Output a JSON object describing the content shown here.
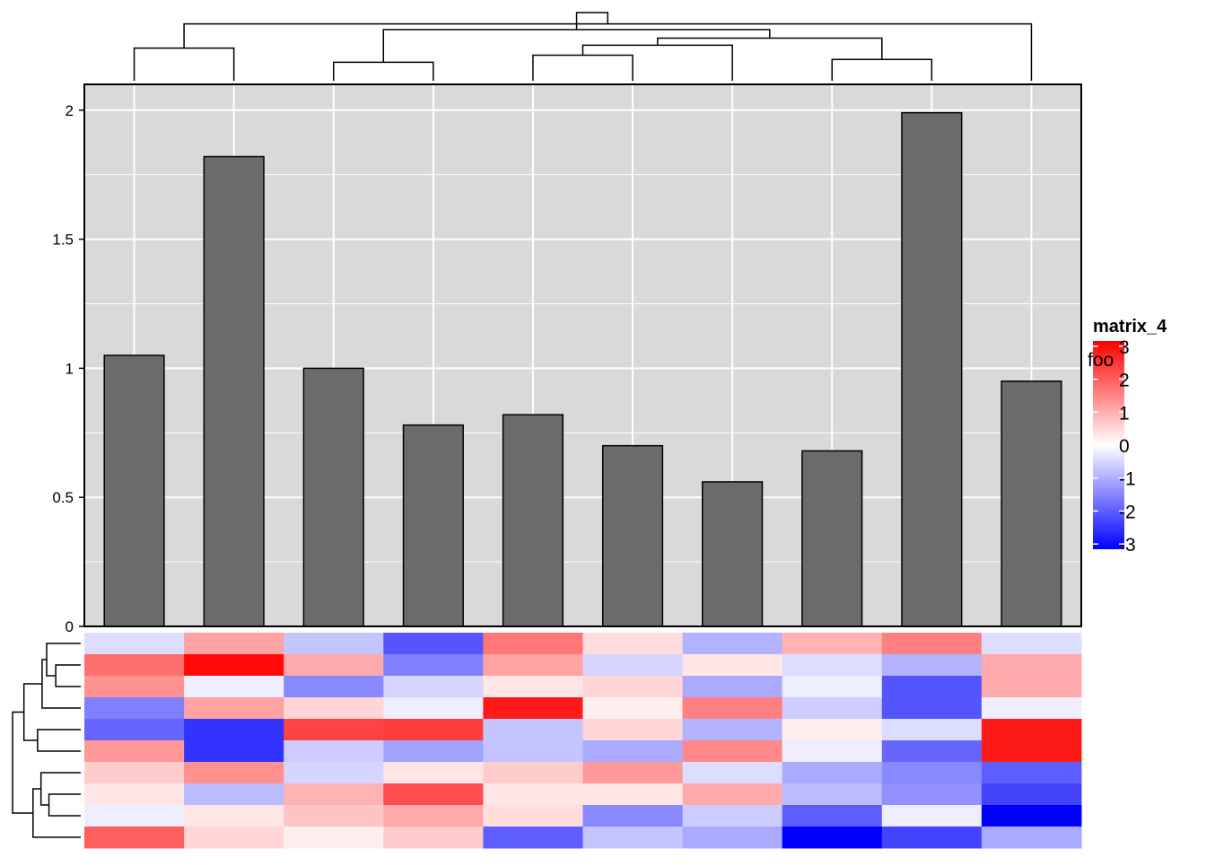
{
  "chart_data": {
    "type": "bar",
    "title": "",
    "xlabel": "",
    "ylabel": "",
    "ylim": [
      0,
      2.1
    ],
    "yticks": [
      {
        "value": 0,
        "label": "0"
      },
      {
        "value": 0.5,
        "label": "0.5"
      },
      {
        "value": 1,
        "label": "1"
      },
      {
        "value": 1.5,
        "label": "1.5"
      },
      {
        "value": 2,
        "label": "2"
      }
    ],
    "values": [
      1.05,
      1.82,
      1.0,
      0.78,
      0.82,
      0.7,
      0.56,
      0.68,
      1.99,
      0.95
    ],
    "grid": true,
    "colors": {
      "panel_background": "#d9d9d9",
      "grid_line": "#ffffff",
      "bar_fill": "#6b6b6b",
      "bar_border": "#000000"
    },
    "heatmap": {
      "name": "matrix_4",
      "color_scale": {
        "low": "#0000ff",
        "mid": "#ffffff",
        "high": "#ff0000",
        "min": -3,
        "max": 3
      },
      "legend_ticks": [
        {
          "value": 3,
          "label": "3"
        },
        {
          "value": 2,
          "label": "2"
        },
        {
          "value": 1,
          "label": "1"
        },
        {
          "value": 0,
          "label": "0"
        },
        {
          "value": -1,
          "label": "-1"
        },
        {
          "value": -2,
          "label": "-2"
        },
        {
          "value": -3,
          "label": "-3"
        }
      ],
      "overlap_label": "foo",
      "legend_placement": "right",
      "rows": [
        [
          -0.4,
          1.1,
          -0.7,
          -2.0,
          1.6,
          0.4,
          -0.9,
          0.9,
          1.5,
          -0.4
        ],
        [
          1.7,
          2.9,
          1.0,
          -1.5,
          1.1,
          -0.5,
          0.3,
          -0.4,
          -0.9,
          1.0
        ],
        [
          1.3,
          -0.2,
          -1.4,
          -0.5,
          0.3,
          0.5,
          -1.0,
          -0.2,
          -2.0,
          1.0
        ],
        [
          -1.5,
          1.1,
          0.5,
          -0.2,
          2.7,
          0.2,
          1.5,
          -0.6,
          -2.0,
          -0.2
        ],
        [
          -1.8,
          -2.4,
          2.2,
          2.3,
          -0.7,
          0.5,
          -0.9,
          0.2,
          -0.4,
          2.7
        ],
        [
          1.2,
          -2.4,
          -0.6,
          -1.1,
          -0.7,
          -1.0,
          1.4,
          -0.2,
          -1.8,
          2.7
        ],
        [
          0.6,
          1.3,
          -0.5,
          0.3,
          0.6,
          1.2,
          -0.4,
          -1.0,
          -1.4,
          -1.9
        ],
        [
          0.3,
          -0.8,
          0.9,
          2.1,
          0.3,
          0.3,
          1.0,
          -0.8,
          -1.3,
          -2.2
        ],
        [
          -0.2,
          0.3,
          0.7,
          1.0,
          0.4,
          -1.4,
          -0.6,
          -1.9,
          -0.2,
          -3.0
        ],
        [
          1.9,
          0.5,
          0.2,
          0.6,
          -1.9,
          -0.7,
          -1.0,
          -3.0,
          -2.2,
          -1.0
        ]
      ]
    },
    "column_dendrogram": {
      "order": [
        0,
        1,
        2,
        3,
        4,
        5,
        6,
        7,
        8,
        9
      ],
      "merges": [
        {
          "a": 0,
          "b": 1,
          "h": 0.23
        },
        {
          "a": 2,
          "b": 3,
          "h": 0.13
        },
        {
          "a": 4,
          "b": 5,
          "h": 0.18
        },
        {
          "a": 7,
          "b": 8,
          "h": 0.15
        },
        {
          "a": "m2",
          "b": 6,
          "h": 0.25
        },
        {
          "a": "m4",
          "b": "m3",
          "h": 0.3
        },
        {
          "a": "m1",
          "b": "m5",
          "h": 0.36
        },
        {
          "a": "m0",
          "b": 9,
          "h": 0.4
        },
        {
          "a": "m6",
          "b": "m7",
          "h": 0.48
        }
      ]
    },
    "row_dendrogram": {
      "merges": [
        {
          "a": 1,
          "b": 2,
          "h": 0.22
        },
        {
          "a": 0,
          "b": "m0",
          "h": 0.3
        },
        {
          "a": 3,
          "b": "m1",
          "h": 0.34
        },
        {
          "a": 4,
          "b": 5,
          "h": 0.38
        },
        {
          "a": 7,
          "b": 8,
          "h": 0.28
        },
        {
          "a": 6,
          "b": "m4",
          "h": 0.35
        },
        {
          "a": "m5",
          "b": 9,
          "h": 0.42
        },
        {
          "a": "m2",
          "b": "m3",
          "h": 0.5
        },
        {
          "a": "m7",
          "b": "m6",
          "h": 0.6
        }
      ]
    }
  }
}
